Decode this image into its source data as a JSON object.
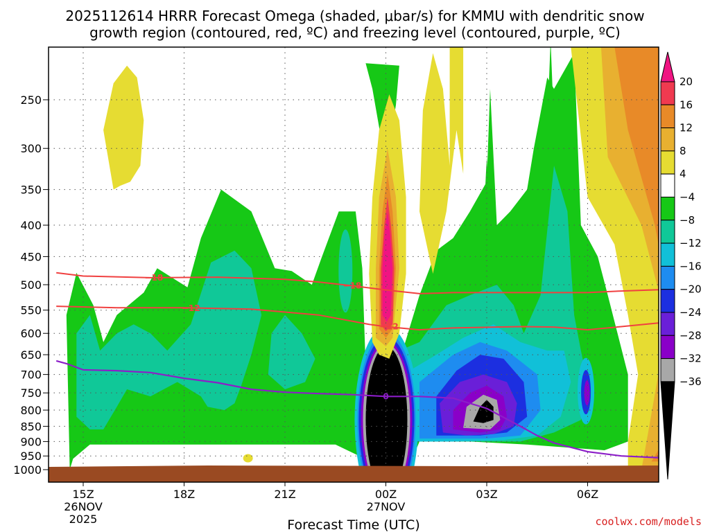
{
  "colors": {
    "black": "#000000",
    "gray": "#a8a8a8",
    "purple": "#8a00c8",
    "violet": "#6a1fd8",
    "blue": "#1c2fe0",
    "lightblue": "#1e8cf0",
    "cyan": "#11c0d8",
    "teal": "#10c898",
    "green": "#16c816",
    "white": "#ffffff",
    "yellow": "#e6dc32",
    "gold": "#e8b030",
    "orange": "#e88a28",
    "red": "#f03a50",
    "magenta": "#f01482",
    "dgz": "#f04040",
    "freezing": "#8c1ec8",
    "ground": "#9a4a22",
    "credit": "#d81e1e"
  },
  "chart_data": {
    "type": "heatmap",
    "title_line1": "2025112614 HRRR Forecast Omega (shaded, μbar/s) for KMMU with dendritic snow",
    "title_line2": "growth region (contoured, red, ºC) and freezing level (contoured, purple, ºC)",
    "xlabel": "Forecast Time (UTC)",
    "ylabel": "",
    "credit": "coolwx.com/models",
    "x_range_hours": [
      14.2,
      8.8
    ],
    "x_ticks": [
      {
        "hour": 15,
        "label": "15Z",
        "sub1": "26NOV",
        "sub2": "2025"
      },
      {
        "hour": 18,
        "label": "18Z",
        "sub1": "",
        "sub2": ""
      },
      {
        "hour": 21,
        "label": "21Z",
        "sub1": "",
        "sub2": ""
      },
      {
        "hour": 24,
        "label": "00Z",
        "sub1": "27NOV",
        "sub2": ""
      },
      {
        "hour": 27,
        "label": "03Z",
        "sub1": "",
        "sub2": ""
      },
      {
        "hour": 30,
        "label": "06Z",
        "sub1": "",
        "sub2": ""
      }
    ],
    "y_range_mb": [
      1020,
      200
    ],
    "y_ticks": [
      250,
      300,
      350,
      400,
      450,
      500,
      550,
      600,
      650,
      700,
      750,
      800,
      850,
      900,
      950,
      1000
    ],
    "colorbar": {
      "levels": [
        -36,
        -32,
        -28,
        -24,
        -20,
        -16,
        -12,
        -8,
        -4,
        4,
        8,
        12,
        16,
        20
      ],
      "labels": [
        "20",
        "16",
        "12",
        "8",
        "4",
        "−4",
        "−8",
        "−12",
        "−16",
        "−20",
        "−24",
        "−28",
        "−32",
        "−36"
      ]
    },
    "dgz_contours": [
      {
        "label": "−18",
        "points": [
          [
            14.2,
            478
          ],
          [
            15,
            484
          ],
          [
            17,
            487
          ],
          [
            19,
            486
          ],
          [
            21,
            490
          ],
          [
            22,
            495
          ],
          [
            23,
            502
          ],
          [
            24,
            510
          ],
          [
            25,
            517
          ],
          [
            26,
            515
          ],
          [
            28,
            515
          ],
          [
            30,
            515
          ],
          [
            31,
            512
          ],
          [
            32.8,
            508
          ]
        ]
      },
      {
        "label": "−12",
        "points": [
          [
            14.2,
            542
          ],
          [
            16,
            545
          ],
          [
            18,
            545
          ],
          [
            20,
            548
          ],
          [
            22,
            560
          ],
          [
            23.5,
            580
          ],
          [
            24,
            585
          ],
          [
            25,
            592
          ],
          [
            26,
            588
          ],
          [
            28,
            585
          ],
          [
            29,
            586
          ],
          [
            30,
            592
          ],
          [
            31,
            585
          ],
          [
            32,
            578
          ],
          [
            32.8,
            572
          ]
        ]
      }
    ],
    "freezing_contour": {
      "label": "0",
      "points": [
        [
          14.2,
          665
        ],
        [
          14.5,
          672
        ],
        [
          15,
          688
        ],
        [
          16,
          690
        ],
        [
          17,
          695
        ],
        [
          18,
          710
        ],
        [
          19,
          722
        ],
        [
          20,
          740
        ],
        [
          21,
          748
        ],
        [
          22,
          752
        ],
        [
          23,
          755
        ],
        [
          24,
          760
        ],
        [
          25,
          760
        ],
        [
          26,
          765
        ],
        [
          27,
          795
        ],
        [
          28,
          850
        ],
        [
          28.5,
          880
        ],
        [
          29,
          905
        ],
        [
          30,
          935
        ],
        [
          31,
          950
        ],
        [
          32.8,
          960
        ]
      ]
    }
  }
}
